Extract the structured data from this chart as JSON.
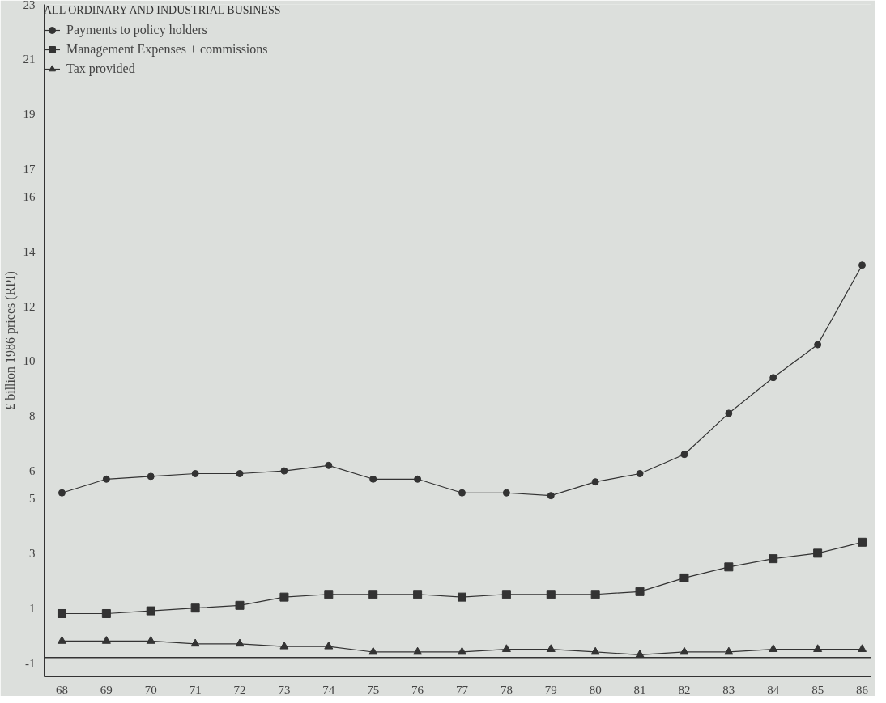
{
  "chart_data": {
    "type": "line",
    "ylabel": "£ billion 1986 prices (RPI)",
    "legend_title": "ALL ORDINARY AND INDUSTRIAL BUSINESS",
    "legend": "top left",
    "grid": false,
    "categories": [
      "68",
      "69",
      "70",
      "71",
      "72",
      "73",
      "74",
      "75",
      "76",
      "77",
      "78",
      "79",
      "80",
      "81",
      "82",
      "83",
      "84",
      "85",
      "86"
    ],
    "ylim": [
      -1.5,
      23
    ],
    "yticks": [
      -1,
      1,
      3,
      5,
      6,
      8,
      10,
      12,
      14,
      16,
      17,
      19,
      21,
      23
    ],
    "ref_lines": [
      {
        "axis": "y",
        "value": -0.8,
        "color": "#333333"
      }
    ],
    "series": [
      {
        "name": "Payments to policy holders",
        "color": "#333333",
        "marker": "circle",
        "values": [
          5.2,
          5.7,
          5.8,
          5.9,
          5.9,
          6.0,
          6.2,
          5.7,
          5.7,
          5.2,
          5.2,
          5.1,
          5.6,
          5.9,
          6.6,
          8.1,
          9.4,
          10.6,
          13.5
        ]
      },
      {
        "name": "Management Expenses + commissions",
        "color": "#333333",
        "marker": "square",
        "values": [
          0.8,
          0.8,
          0.9,
          1.0,
          1.1,
          1.4,
          1.5,
          1.5,
          1.5,
          1.4,
          1.5,
          1.5,
          1.5,
          1.6,
          2.1,
          2.5,
          2.8,
          3.0,
          3.4
        ]
      },
      {
        "name": "Tax provided",
        "color": "#333333",
        "marker": "triangle",
        "values": [
          -0.2,
          -0.2,
          -0.2,
          -0.3,
          -0.3,
          -0.4,
          -0.4,
          -0.6,
          -0.6,
          -0.6,
          -0.5,
          -0.5,
          -0.6,
          -0.7,
          -0.6,
          -0.6,
          -0.5,
          -0.5,
          -0.5
        ]
      }
    ]
  }
}
